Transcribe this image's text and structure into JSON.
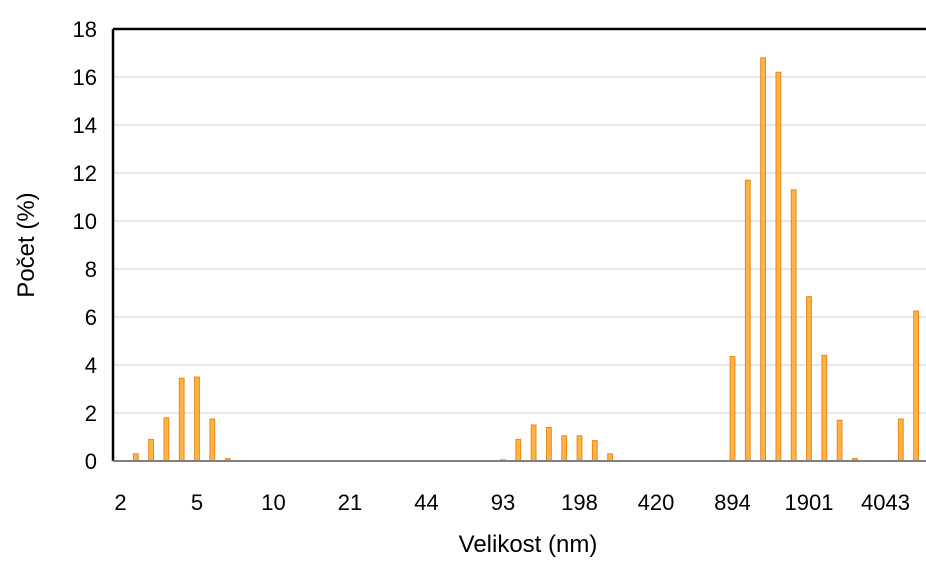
{
  "chart_data": {
    "type": "bar",
    "xlabel": "Velikost (nm)",
    "ylabel": "Počet (%)",
    "ylim": [
      0,
      18
    ],
    "y_ticks": [
      0,
      2,
      4,
      6,
      8,
      10,
      12,
      14,
      16,
      18
    ],
    "grid": "horizontal",
    "x_tick_labels": [
      "2",
      "5",
      "10",
      "21",
      "44",
      "93",
      "198",
      "420",
      "894",
      "1901",
      "4043"
    ],
    "colors": {
      "bar_fill": "#FFB347",
      "bar_stroke": "#E8891A",
      "gridline": "#D9D9D9",
      "axis": "#000000"
    },
    "bins": 53,
    "values": [
      0,
      0.3,
      0.9,
      1.8,
      3.45,
      3.5,
      1.75,
      0.1,
      0,
      0,
      0,
      0,
      0,
      0,
      0,
      0,
      0,
      0,
      0,
      0,
      0,
      0,
      0,
      0,
      0,
      0.05,
      0.9,
      1.5,
      1.4,
      1.05,
      1.05,
      0.85,
      0.3,
      0,
      0,
      0,
      0,
      0,
      0,
      0,
      4.35,
      11.7,
      16.8,
      16.2,
      11.3,
      6.85,
      4.4,
      1.7,
      0.1,
      0,
      0,
      1.75,
      6.25
    ]
  }
}
